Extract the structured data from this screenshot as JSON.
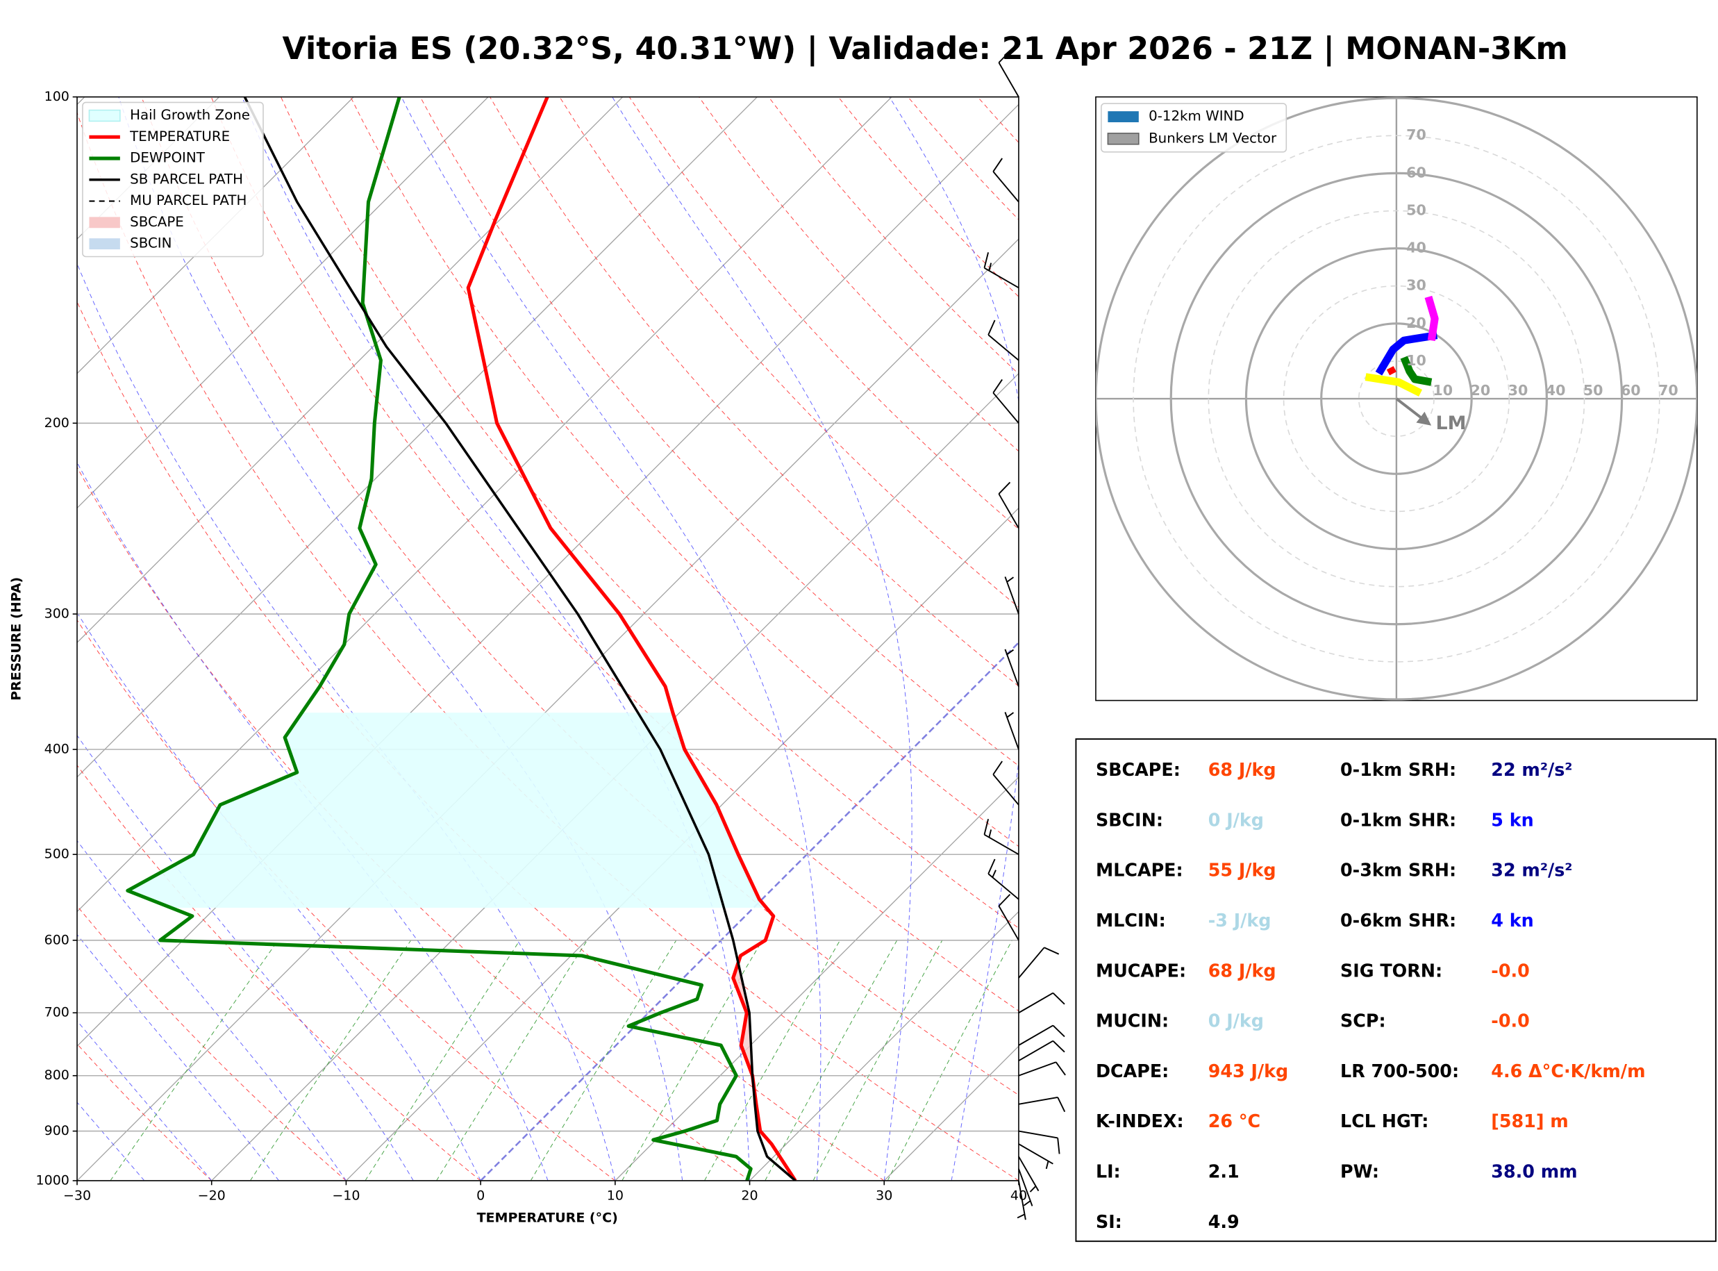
{
  "chart_data": [
    {
      "type": "skewt",
      "title": "Vitoria ES (20.32°S, 40.31°W) | Validade: 21 Apr 2026 - 21Z | MONAN-3Km",
      "xlabel": "TEMPERATURE (°C)",
      "ylabel": "PRESSURE (HPA)",
      "xlim": [
        -30,
        40
      ],
      "ylim": [
        1000,
        100
      ],
      "log_y": true,
      "xticks": [
        {
          "value": -30,
          "label": "−30"
        },
        {
          "value": -20,
          "label": "−20"
        },
        {
          "value": -10,
          "label": "−10"
        },
        0,
        10,
        20,
        30,
        40
      ],
      "yticks": [
        100,
        200,
        300,
        400,
        500,
        600,
        700,
        800,
        900,
        1000
      ],
      "grid": true,
      "hail_growth_zone": {
        "name": "Hail Growth Zone",
        "color": "#e0ffff",
        "bottom": 560,
        "top": 370
      },
      "series": [
        {
          "name": "TEMPERATURE",
          "color": "#ff0000",
          "pressure": [
            1000,
            925,
            900,
            850,
            800,
            750,
            700,
            650,
            620,
            600,
            570,
            550,
            500,
            450,
            400,
            370,
            350,
            300,
            250,
            200,
            150,
            130,
            100
          ],
          "values": [
            23.4,
            18.9,
            17.1,
            14.8,
            12.4,
            9.3,
            7.3,
            3.7,
            2.6,
            3.3,
            2.1,
            -0.2,
            -5.1,
            -10.4,
            -16.9,
            -20.5,
            -23.0,
            -31.8,
            -43.3,
            -55.1,
            -67.3,
            -70.3,
            -75.6
          ]
        },
        {
          "name": "DEWPOINT",
          "color": "#008000",
          "pressure": [
            1000,
            975,
            950,
            917,
            900,
            880,
            850,
            800,
            750,
            720,
            700,
            680,
            660,
            620,
            600,
            570,
            540,
            500,
            450,
            420,
            390,
            350,
            320,
            300,
            270,
            250,
            225,
            200,
            175,
            155,
            125,
            100
          ],
          "values": [
            19.8,
            19.2,
            17.2,
            9.8,
            11.5,
            13.1,
            12.1,
            11.2,
            7.8,
            -0.5,
            0.9,
            2.6,
            1.9,
            -9.2,
            -41.7,
            -41.1,
            -47.8,
            -45.6,
            -47.3,
            -44.0,
            -47.5,
            -48.7,
            -50.0,
            -51.9,
            -53.6,
            -57.5,
            -60.3,
            -64.2,
            -68.4,
            -74.0,
            -81.1,
            -86.6
          ]
        },
        {
          "name": "SB PARCEL PATH",
          "color": "#000000",
          "pressure": [
            1000,
            950,
            900,
            850,
            800,
            700,
            600,
            500,
            400,
            300,
            250,
            200,
            170,
            150,
            125,
            100
          ],
          "values": [
            23.4,
            19.5,
            16.9,
            14.7,
            12.4,
            7.5,
            0.9,
            -7.3,
            -18.7,
            -34.9,
            -45.7,
            -58.9,
            -69.0,
            -76.1,
            -86.4,
            -98.1
          ]
        },
        {
          "name": "MU PARCEL PATH",
          "color": "#000000",
          "dashed": true,
          "pressure": [
            1000,
            950,
            900,
            850,
            800,
            700,
            600,
            500,
            400,
            300,
            250,
            200,
            170,
            150,
            125,
            100
          ],
          "values": [
            23.4,
            19.5,
            16.9,
            14.7,
            12.4,
            7.5,
            0.9,
            -7.3,
            -18.7,
            -34.9,
            -45.7,
            -58.9,
            -69.0,
            -76.1,
            -86.4,
            -98.1
          ]
        }
      ],
      "sbcape": {
        "name": "SBCAPE",
        "color": "#f8c8c8"
      },
      "sbcin": {
        "name": "SBCIN",
        "color": "#c6dbef"
      },
      "barbs": {
        "pressure": [
          1000,
          975,
          950,
          925,
          900,
          850,
          800,
          775,
          750,
          700,
          650,
          600,
          550,
          500,
          450,
          400,
          350,
          300,
          250,
          200,
          175,
          150,
          125,
          100
        ],
        "speed": [
          5,
          5,
          5,
          5,
          10,
          10,
          10,
          10,
          10,
          10,
          10,
          10,
          15,
          15,
          10,
          5,
          5,
          5,
          10,
          10,
          10,
          15,
          10,
          10
        ],
        "direction": [
          170,
          160,
          150,
          120,
          100,
          80,
          70,
          60,
          60,
          60,
          40,
          330,
          310,
          300,
          320,
          340,
          340,
          340,
          330,
          320,
          310,
          300,
          320,
          330
        ]
      }
    },
    {
      "type": "hodograph",
      "rlim": [
        0,
        80
      ],
      "rticks": [
        10,
        20,
        30,
        40,
        50,
        60,
        70
      ],
      "legend": [
        {
          "name": "0-12km WIND",
          "color": "#1f77b4"
        },
        {
          "name": "Bunkers LM Vector",
          "color": "#a0a0a0"
        }
      ],
      "segments": [
        {
          "color": "#ff0000",
          "u": [
            -0.9,
            -1.7
          ],
          "v": [
            6.7,
            8.2
          ]
        },
        {
          "color": "#008000",
          "u": [
            2.0,
            3.5,
            4.9,
            9.3
          ],
          "v": [
            11.0,
            7.3,
            5.2,
            4.4
          ]
        },
        {
          "color": "#ffff00",
          "u": [
            6.4,
            0.6,
            -8.2
          ],
          "v": [
            1.5,
            4.4,
            5.8
          ]
        },
        {
          "color": "#0000ff",
          "u": [
            -4.7,
            -0.9,
            2.0,
            10.8
          ],
          "v": [
            6.7,
            13.1,
            15.5,
            16.9
          ]
        },
        {
          "color": "#ff00ff",
          "u": [
            9.3,
            10.2,
            8.5
          ],
          "v": [
            15.5,
            21.3,
            27.1
          ]
        }
      ],
      "bunkers_lm": {
        "label": "LM",
        "color": "#808080",
        "u": 8.7,
        "v": -6.7
      }
    }
  ],
  "indices": {
    "columns": [
      [
        {
          "label": "SBCAPE:",
          "value": "68 J/kg",
          "color": "#ff4500"
        },
        {
          "label": "SBCIN:",
          "value": "0 J/kg",
          "color": "#add8e6"
        },
        {
          "label": "MLCAPE:",
          "value": "55 J/kg",
          "color": "#ff4500"
        },
        {
          "label": "MLCIN:",
          "value": "-3 J/kg",
          "color": "#add8e6"
        },
        {
          "label": "MUCAPE:",
          "value": "68 J/kg",
          "color": "#ff4500"
        },
        {
          "label": "MUCIN:",
          "value": "0 J/kg",
          "color": "#add8e6"
        },
        {
          "label": "DCAPE:",
          "value": "943 J/kg",
          "color": "#ff4500"
        },
        {
          "label": "K-INDEX:",
          "value": "26 °C",
          "color": "#ff4500"
        },
        {
          "label": "LI:",
          "value": "2.1",
          "color": "#000000"
        },
        {
          "label": "SI:",
          "value": "4.9",
          "color": "#000000"
        }
      ],
      [
        {
          "label": "0-1km SRH:",
          "value": "22 m²/s²",
          "color": "#000080"
        },
        {
          "label": "0-1km SHR:",
          "value": "5 kn",
          "color": "#0000ff"
        },
        {
          "label": "0-3km SRH:",
          "value": "32 m²/s²",
          "color": "#000080"
        },
        {
          "label": "0-6km SHR:",
          "value": "4 kn",
          "color": "#0000ff"
        },
        {
          "label": "SIG TORN:",
          "value": "-0.0",
          "color": "#ff4500"
        },
        {
          "label": "SCP:",
          "value": "-0.0",
          "color": "#ff4500"
        },
        {
          "label": "LR 700-500:",
          "value": "4.6 Δ°C·K/km/m",
          "color": "#ff4500"
        },
        {
          "label": "LCL HGT:",
          "value": "[581] m",
          "color": "#ff4500"
        },
        {
          "label": "PW:",
          "value": "38.0 mm",
          "color": "#000080"
        }
      ]
    ]
  }
}
